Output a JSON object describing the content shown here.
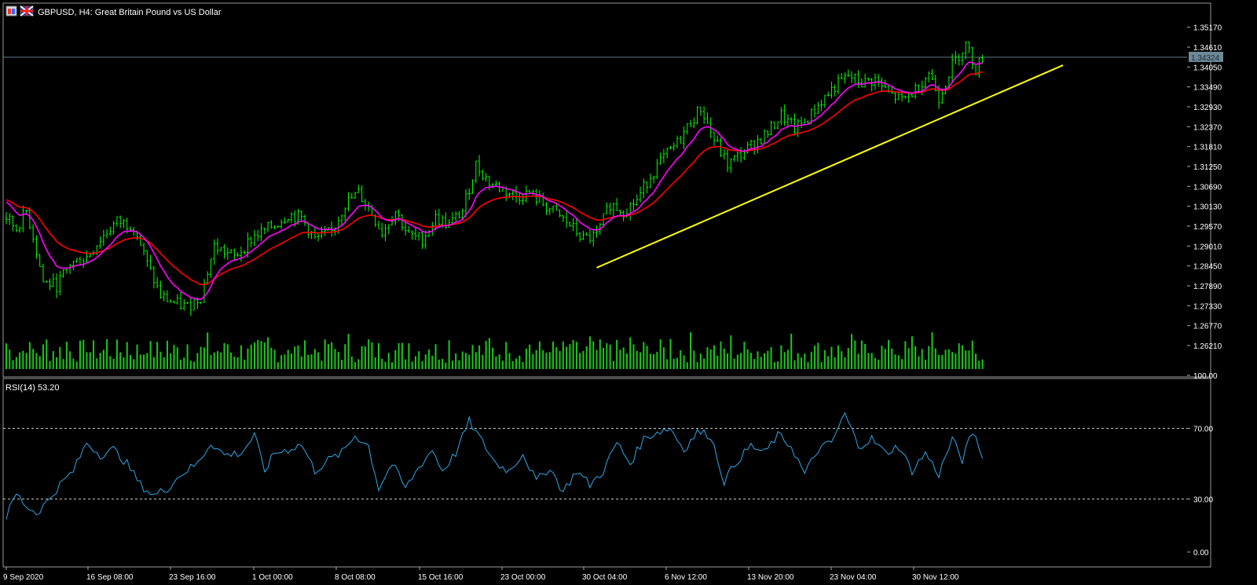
{
  "window": {
    "title": "GBPUSD, H4:  Great Britain Pound vs US Dollar"
  },
  "chart_data": [
    {
      "type": "candlestick",
      "symbol": "GBPUSD",
      "timeframe": "H4",
      "title": "GBPUSD, H4:  Great Britain Pound vs US Dollar",
      "current_price": 1.34324,
      "ylim": [
        1.259,
        1.3545
      ],
      "y_ticks": [
        "1.35170",
        "1.34610",
        "1.34050",
        "1.33490",
        "1.32930",
        "1.32370",
        "1.31810",
        "1.31250",
        "1.30690",
        "1.30130",
        "1.29570",
        "1.29010",
        "1.28450",
        "1.27890",
        "1.27330",
        "1.26770",
        "1.26210"
      ],
      "x_ticks": [
        "9 Sep 2020",
        "16 Sep 08:00",
        "23 Sep 16:00",
        "1 Oct 00:00",
        "8 Oct 08:00",
        "15 Oct 16:00",
        "23 Oct 00:00",
        "30 Oct 04:00",
        "6 Nov 12:00",
        "13 Nov 20:00",
        "23 Nov 04:00",
        "30 Nov 12:00"
      ],
      "close_path": [
        {
          "t": 0,
          "v": 1.298
        },
        {
          "t": 3,
          "v": 1.295
        },
        {
          "t": 6,
          "v": 1.3
        },
        {
          "t": 8,
          "v": 1.293
        },
        {
          "t": 11,
          "v": 1.28
        },
        {
          "t": 15,
          "v": 1.279
        },
        {
          "t": 19,
          "v": 1.285
        },
        {
          "t": 24,
          "v": 1.287
        },
        {
          "t": 28,
          "v": 1.292
        },
        {
          "t": 33,
          "v": 1.297
        },
        {
          "t": 38,
          "v": 1.296
        },
        {
          "t": 42,
          "v": 1.285
        },
        {
          "t": 46,
          "v": 1.276
        },
        {
          "t": 50,
          "v": 1.274
        },
        {
          "t": 54,
          "v": 1.273
        },
        {
          "t": 58,
          "v": 1.276
        },
        {
          "t": 62,
          "v": 1.29
        },
        {
          "t": 68,
          "v": 1.287
        },
        {
          "t": 74,
          "v": 1.293
        },
        {
          "t": 80,
          "v": 1.296
        },
        {
          "t": 84,
          "v": 1.299
        },
        {
          "t": 88,
          "v": 1.298
        },
        {
          "t": 92,
          "v": 1.292
        },
        {
          "t": 97,
          "v": 1.294
        },
        {
          "t": 101,
          "v": 1.302
        },
        {
          "t": 105,
          "v": 1.305
        },
        {
          "t": 108,
          "v": 1.301
        },
        {
          "t": 112,
          "v": 1.294
        },
        {
          "t": 116,
          "v": 1.3
        },
        {
          "t": 120,
          "v": 1.293
        },
        {
          "t": 124,
          "v": 1.292
        },
        {
          "t": 128,
          "v": 1.298
        },
        {
          "t": 132,
          "v": 1.296
        },
        {
          "t": 136,
          "v": 1.3
        },
        {
          "t": 140,
          "v": 1.313
        },
        {
          "t": 144,
          "v": 1.308
        },
        {
          "t": 148,
          "v": 1.306
        },
        {
          "t": 152,
          "v": 1.304
        },
        {
          "t": 156,
          "v": 1.305
        },
        {
          "t": 160,
          "v": 1.302
        },
        {
          "t": 164,
          "v": 1.299
        },
        {
          "t": 168,
          "v": 1.296
        },
        {
          "t": 172,
          "v": 1.292
        },
        {
          "t": 176,
          "v": 1.293
        },
        {
          "t": 180,
          "v": 1.302
        },
        {
          "t": 184,
          "v": 1.3
        },
        {
          "t": 188,
          "v": 1.303
        },
        {
          "t": 192,
          "v": 1.31
        },
        {
          "t": 196,
          "v": 1.315
        },
        {
          "t": 200,
          "v": 1.319
        },
        {
          "t": 204,
          "v": 1.325
        },
        {
          "t": 207,
          "v": 1.329
        },
        {
          "t": 211,
          "v": 1.32
        },
        {
          "t": 215,
          "v": 1.313
        },
        {
          "t": 219,
          "v": 1.316
        },
        {
          "t": 223,
          "v": 1.319
        },
        {
          "t": 227,
          "v": 1.322
        },
        {
          "t": 231,
          "v": 1.327
        },
        {
          "t": 235,
          "v": 1.323
        },
        {
          "t": 239,
          "v": 1.326
        },
        {
          "t": 243,
          "v": 1.331
        },
        {
          "t": 247,
          "v": 1.335
        },
        {
          "t": 251,
          "v": 1.338
        },
        {
          "t": 255,
          "v": 1.336
        },
        {
          "t": 259,
          "v": 1.337
        },
        {
          "t": 263,
          "v": 1.333
        },
        {
          "t": 267,
          "v": 1.331
        },
        {
          "t": 271,
          "v": 1.334
        },
        {
          "t": 275,
          "v": 1.339
        },
        {
          "t": 278,
          "v": 1.332
        },
        {
          "t": 282,
          "v": 1.341
        },
        {
          "t": 286,
          "v": 1.347
        },
        {
          "t": 289,
          "v": 1.34
        },
        {
          "t": 291,
          "v": 1.3432
        }
      ],
      "series": [
        {
          "name": "",
          "role": "moving-average-fast",
          "color": "#ff00ff"
        },
        {
          "name": "",
          "role": "moving-average-slow",
          "color": "#ff0000"
        },
        {
          "name": "",
          "role": "trendline",
          "color": "#ffff00",
          "points": [
            {
              "t": 176,
              "v": 1.284
            },
            {
              "t": 315,
              "v": 1.341
            }
          ]
        },
        {
          "name": "",
          "role": "volume",
          "color": "#19c819"
        }
      ],
      "colors": {
        "candles": "#00ff00",
        "grid_line": "#5f7d8a",
        "price_tag": "#6e8898"
      }
    },
    {
      "type": "line",
      "title": "RSI(14) 53.20",
      "ylim": [
        0,
        100
      ],
      "y_ticks": [
        "100.00",
        "70.00",
        "30.00",
        "0.00"
      ],
      "levels": [
        70,
        30
      ],
      "series": [
        {
          "name": "",
          "color": "#2ea8e6",
          "points": [
            {
              "t": 0,
              "v": 20
            },
            {
              "t": 3,
              "v": 33
            },
            {
              "t": 6,
              "v": 26
            },
            {
              "t": 9,
              "v": 22
            },
            {
              "t": 12,
              "v": 28
            },
            {
              "t": 16,
              "v": 38
            },
            {
              "t": 20,
              "v": 46
            },
            {
              "t": 24,
              "v": 62
            },
            {
              "t": 28,
              "v": 55
            },
            {
              "t": 32,
              "v": 58
            },
            {
              "t": 36,
              "v": 50
            },
            {
              "t": 40,
              "v": 38
            },
            {
              "t": 44,
              "v": 32
            },
            {
              "t": 48,
              "v": 36
            },
            {
              "t": 52,
              "v": 44
            },
            {
              "t": 57,
              "v": 50
            },
            {
              "t": 61,
              "v": 62
            },
            {
              "t": 65,
              "v": 55
            },
            {
              "t": 70,
              "v": 56
            },
            {
              "t": 74,
              "v": 66
            },
            {
              "t": 77,
              "v": 46
            },
            {
              "t": 80,
              "v": 56
            },
            {
              "t": 84,
              "v": 58
            },
            {
              "t": 88,
              "v": 61
            },
            {
              "t": 92,
              "v": 46
            },
            {
              "t": 96,
              "v": 52
            },
            {
              "t": 100,
              "v": 56
            },
            {
              "t": 104,
              "v": 66
            },
            {
              "t": 108,
              "v": 60
            },
            {
              "t": 111,
              "v": 36
            },
            {
              "t": 115,
              "v": 50
            },
            {
              "t": 119,
              "v": 36
            },
            {
              "t": 123,
              "v": 48
            },
            {
              "t": 127,
              "v": 58
            },
            {
              "t": 130,
              "v": 46
            },
            {
              "t": 134,
              "v": 56
            },
            {
              "t": 138,
              "v": 74
            },
            {
              "t": 142,
              "v": 62
            },
            {
              "t": 146,
              "v": 50
            },
            {
              "t": 150,
              "v": 46
            },
            {
              "t": 154,
              "v": 56
            },
            {
              "t": 158,
              "v": 40
            },
            {
              "t": 162,
              "v": 48
            },
            {
              "t": 166,
              "v": 34
            },
            {
              "t": 170,
              "v": 46
            },
            {
              "t": 174,
              "v": 38
            },
            {
              "t": 178,
              "v": 46
            },
            {
              "t": 182,
              "v": 62
            },
            {
              "t": 186,
              "v": 50
            },
            {
              "t": 190,
              "v": 64
            },
            {
              "t": 194,
              "v": 68
            },
            {
              "t": 198,
              "v": 70
            },
            {
              "t": 202,
              "v": 58
            },
            {
              "t": 206,
              "v": 68
            },
            {
              "t": 210,
              "v": 66
            },
            {
              "t": 214,
              "v": 40
            },
            {
              "t": 218,
              "v": 52
            },
            {
              "t": 222,
              "v": 60
            },
            {
              "t": 226,
              "v": 56
            },
            {
              "t": 230,
              "v": 66
            },
            {
              "t": 234,
              "v": 60
            },
            {
              "t": 238,
              "v": 44
            },
            {
              "t": 242,
              "v": 58
            },
            {
              "t": 246,
              "v": 62
            },
            {
              "t": 250,
              "v": 78
            },
            {
              "t": 254,
              "v": 60
            },
            {
              "t": 258,
              "v": 64
            },
            {
              "t": 262,
              "v": 56
            },
            {
              "t": 266,
              "v": 60
            },
            {
              "t": 270,
              "v": 46
            },
            {
              "t": 274,
              "v": 56
            },
            {
              "t": 278,
              "v": 44
            },
            {
              "t": 282,
              "v": 64
            },
            {
              "t": 285,
              "v": 52
            },
            {
              "t": 288,
              "v": 68
            },
            {
              "t": 290,
              "v": 60
            },
            {
              "t": 291,
              "v": 53
            }
          ]
        }
      ]
    }
  ]
}
